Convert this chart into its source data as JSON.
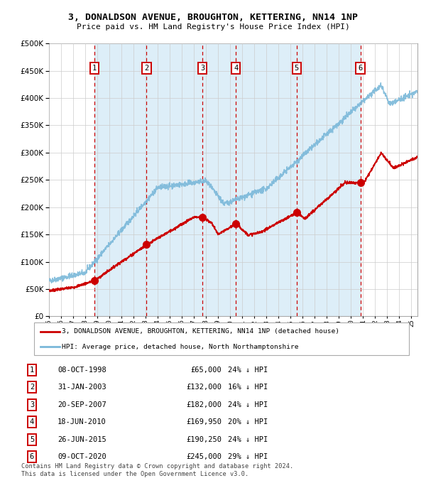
{
  "title": "3, DONALDSON AVENUE, BROUGHTON, KETTERING, NN14 1NP",
  "subtitle": "Price paid vs. HM Land Registry's House Price Index (HPI)",
  "legend_line1": "3, DONALDSON AVENUE, BROUGHTON, KETTERING, NN14 1NP (detached house)",
  "legend_line2": "HPI: Average price, detached house, North Northamptonshire",
  "footnote1": "Contains HM Land Registry data © Crown copyright and database right 2024.",
  "footnote2": "This data is licensed under the Open Government Licence v3.0.",
  "transactions": [
    {
      "num": 1,
      "date": "08-OCT-1998",
      "price": 65000,
      "pct": "24%",
      "year_x": 1998.77
    },
    {
      "num": 2,
      "date": "31-JAN-2003",
      "price": 132000,
      "pct": "16%",
      "year_x": 2003.08
    },
    {
      "num": 3,
      "date": "20-SEP-2007",
      "price": 182000,
      "pct": "24%",
      "year_x": 2007.72
    },
    {
      "num": 4,
      "date": "18-JUN-2010",
      "price": 169950,
      "pct": "20%",
      "year_x": 2010.46
    },
    {
      "num": 5,
      "date": "26-JUN-2015",
      "price": 190250,
      "pct": "24%",
      "year_x": 2015.49
    },
    {
      "num": 6,
      "date": "09-OCT-2020",
      "price": 245000,
      "pct": "29%",
      "year_x": 2020.77
    }
  ],
  "hpi_color": "#7ab8d9",
  "price_color": "#cc0000",
  "dashed_color": "#cc0000",
  "background_color": "#ddeef8",
  "grid_color": "#cccccc",
  "ylim": [
    0,
    500000
  ],
  "xlim_start": 1995.0,
  "xlim_end": 2025.5
}
